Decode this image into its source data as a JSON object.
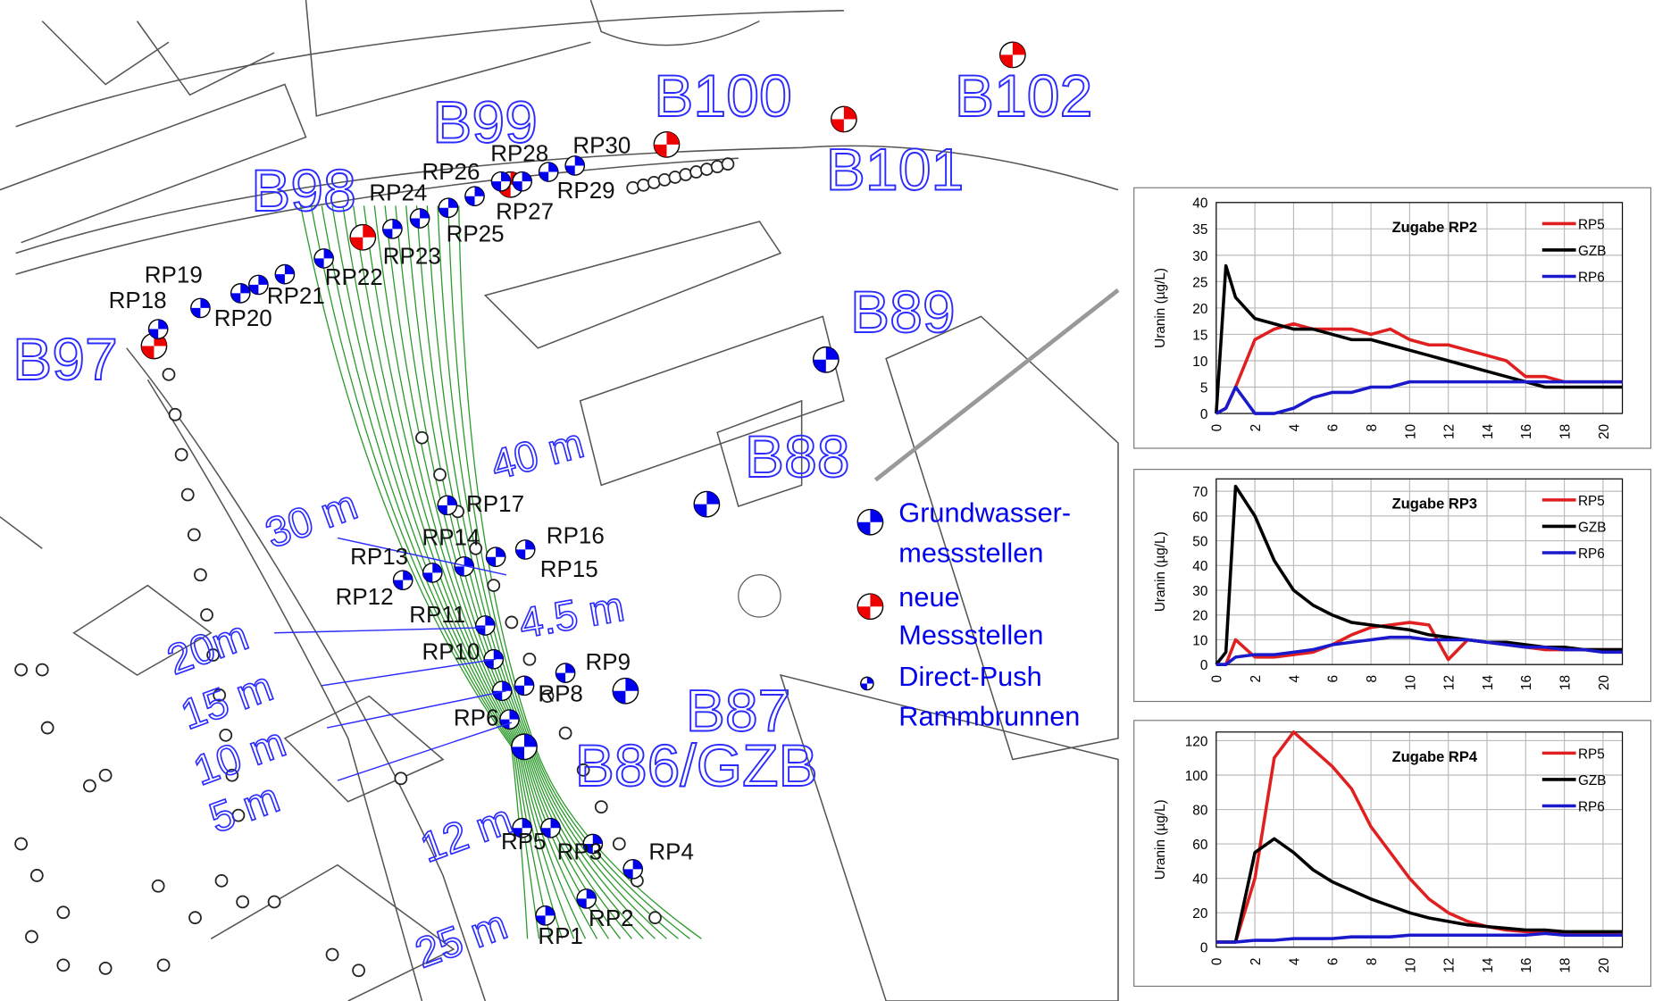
{
  "map": {
    "well_labels": [
      "B97",
      "B98",
      "B99",
      "B100",
      "B101",
      "B102",
      "B89",
      "B88",
      "B87",
      "B86/GZB"
    ],
    "distance_labels": [
      "40 m",
      "30 m",
      "20m",
      "15 m",
      "10 m",
      "5 m",
      "12 m",
      "25 m",
      "4.5 m"
    ],
    "point_labels": [
      "RP1",
      "RP2",
      "RP3",
      "RP4",
      "RP5",
      "RP6",
      "RP8",
      "RP9",
      "RP10",
      "RP11",
      "RP12",
      "RP13",
      "RP14",
      "RP15",
      "RP16",
      "RP17",
      "RP18",
      "RP19",
      "RP20",
      "RP21",
      "RP22",
      "RP23",
      "RP24",
      "RP25",
      "RP26",
      "RP27",
      "RP28",
      "RP29",
      "RP30"
    ],
    "legend": [
      {
        "lines": [
          "Grundwasser-",
          "messstellen"
        ]
      },
      {
        "lines": [
          "neue",
          "Messstellen"
        ]
      },
      {
        "lines": [
          "Direct-Push",
          "Rammbrunnen"
        ]
      }
    ]
  },
  "chart_data": [
    {
      "type": "line",
      "title": "Zugabe RP2",
      "y_label": "Uranin (µg/L)",
      "x": [
        0,
        0.5,
        1,
        2,
        3,
        4,
        5,
        6,
        7,
        8,
        9,
        10,
        11,
        12,
        13,
        14,
        15,
        16,
        17,
        18,
        19,
        20,
        21
      ],
      "xlim": [
        0,
        21
      ],
      "xticks": [
        0,
        2,
        4,
        6,
        8,
        10,
        12,
        14,
        16,
        18,
        20
      ],
      "ylim": [
        0,
        40
      ],
      "yticks": [
        0,
        5,
        10,
        15,
        20,
        25,
        30,
        35,
        40
      ],
      "grid": true,
      "series": [
        {
          "name": "RP5",
          "color": "#e02020",
          "values": [
            0,
            1,
            5,
            14,
            16,
            17,
            16,
            16,
            16,
            15,
            16,
            14,
            13,
            13,
            12,
            11,
            10,
            7,
            7,
            6,
            6,
            6,
            6
          ]
        },
        {
          "name": "GZB",
          "color": "#000000",
          "values": [
            0,
            28,
            22,
            18,
            17,
            16,
            16,
            15,
            14,
            14,
            13,
            12,
            11,
            10,
            9,
            8,
            7,
            6,
            5,
            5,
            5,
            5,
            5
          ]
        },
        {
          "name": "RP6",
          "color": "#1a1acc",
          "values": [
            0,
            1,
            5,
            0,
            0,
            1,
            3,
            4,
            4,
            5,
            5,
            6,
            6,
            6,
            6,
            6,
            6,
            6,
            6,
            6,
            6,
            6,
            6
          ]
        }
      ]
    },
    {
      "type": "line",
      "title": "Zugabe RP3",
      "y_label": "Uranin (µg/L)",
      "x": [
        0,
        0.5,
        1,
        2,
        3,
        4,
        5,
        6,
        7,
        8,
        9,
        10,
        11,
        12,
        13,
        14,
        15,
        16,
        17,
        18,
        19,
        20,
        21
      ],
      "xlim": [
        0,
        21
      ],
      "xticks": [
        0,
        2,
        4,
        6,
        8,
        10,
        12,
        14,
        16,
        18,
        20
      ],
      "ylim": [
        0,
        75
      ],
      "yticks": [
        0,
        10,
        20,
        30,
        40,
        50,
        60,
        70
      ],
      "grid": true,
      "series": [
        {
          "name": "RP5",
          "color": "#e02020",
          "values": [
            0,
            0,
            10,
            3,
            3,
            4,
            5,
            8,
            12,
            15,
            16,
            17,
            16,
            2,
            10,
            9,
            8,
            7,
            6,
            6,
            6,
            6,
            6
          ]
        },
        {
          "name": "GZB",
          "color": "#000000",
          "values": [
            0,
            5,
            72,
            60,
            42,
            30,
            24,
            20,
            17,
            16,
            15,
            14,
            12,
            11,
            10,
            9,
            9,
            8,
            7,
            7,
            6,
            6,
            6
          ]
        },
        {
          "name": "RP6",
          "color": "#1a1acc",
          "values": [
            0,
            0,
            3,
            4,
            4,
            5,
            6,
            8,
            9,
            10,
            11,
            11,
            10,
            10,
            10,
            9,
            8,
            7,
            7,
            6,
            6,
            5,
            5
          ]
        }
      ]
    },
    {
      "type": "line",
      "title": "Zugabe RP4",
      "y_label": "Uranin (µg/L)",
      "x": [
        0,
        0.5,
        1,
        2,
        3,
        4,
        5,
        6,
        7,
        8,
        9,
        10,
        11,
        12,
        13,
        14,
        15,
        16,
        17,
        18,
        19,
        20,
        21
      ],
      "xlim": [
        0,
        21
      ],
      "xticks": [
        0,
        2,
        4,
        6,
        8,
        10,
        12,
        14,
        16,
        18,
        20
      ],
      "ylim": [
        0,
        125
      ],
      "yticks": [
        0,
        20,
        40,
        60,
        80,
        100,
        120
      ],
      "grid": true,
      "series": [
        {
          "name": "RP5",
          "color": "#e02020",
          "values": [
            3,
            3,
            3,
            40,
            110,
            125,
            115,
            105,
            92,
            70,
            55,
            40,
            28,
            20,
            15,
            12,
            10,
            9,
            9,
            8,
            8,
            8,
            8
          ]
        },
        {
          "name": "GZB",
          "color": "#000000",
          "values": [
            3,
            3,
            3,
            55,
            63,
            55,
            45,
            38,
            33,
            28,
            24,
            20,
            17,
            15,
            13,
            12,
            11,
            10,
            10,
            9,
            9,
            9,
            9
          ]
        },
        {
          "name": "RP6",
          "color": "#1a1acc",
          "values": [
            3,
            3,
            3,
            4,
            4,
            5,
            5,
            5,
            6,
            6,
            6,
            7,
            7,
            7,
            7,
            7,
            7,
            7,
            8,
            7,
            7,
            7,
            7
          ]
        }
      ]
    }
  ]
}
